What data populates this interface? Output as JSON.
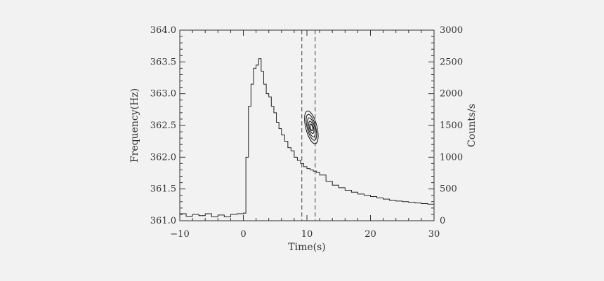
{
  "chart_data": {
    "type": "line",
    "xlabel": "Time(s)",
    "ylabel_left": "Frequency(Hz)",
    "ylabel_right": "Counts/s",
    "xlim": [
      -10,
      30
    ],
    "ylim_left": [
      361.0,
      364.0
    ],
    "ylim_right": [
      0,
      3000
    ],
    "x_ticks": [
      "-10",
      "0",
      "10",
      "20",
      "30"
    ],
    "y_left_ticks": [
      "361.0",
      "361.5",
      "362.0",
      "362.5",
      "363.0",
      "363.5",
      "364.0"
    ],
    "y_right_ticks": [
      "0",
      "500",
      "1000",
      "1500",
      "2000",
      "2500",
      "3000"
    ],
    "grid": false,
    "series": [
      {
        "style": "step",
        "axis": "right",
        "x": [
          -10,
          -9,
          -8,
          -7,
          -6,
          -5,
          -4,
          -3,
          -2,
          -1,
          0,
          0.4,
          0.8,
          1.2,
          1.6,
          2.0,
          2.4,
          2.8,
          3.2,
          3.6,
          4.0,
          4.4,
          4.8,
          5.2,
          5.6,
          6.0,
          6.5,
          7.0,
          7.5,
          8.0,
          8.5,
          9.0,
          9.5,
          10.0,
          10.5,
          11.0,
          11.5,
          12.0,
          13.0,
          14.0,
          15.0,
          16.0,
          17.0,
          18.0,
          19.0,
          20.0,
          21.0,
          22.0,
          23.0,
          24.0,
          25.0,
          26.0,
          27.0,
          28.0,
          29.0,
          30.0
        ],
        "y": [
          110,
          70,
          100,
          80,
          110,
          60,
          90,
          60,
          100,
          110,
          120,
          1000,
          1800,
          2150,
          2400,
          2450,
          2550,
          2350,
          2150,
          2000,
          1950,
          1800,
          1700,
          1550,
          1450,
          1350,
          1250,
          1150,
          1100,
          1000,
          950,
          900,
          850,
          820,
          800,
          780,
          760,
          720,
          620,
          560,
          520,
          480,
          450,
          420,
          400,
          380,
          360,
          340,
          320,
          310,
          300,
          290,
          280,
          270,
          260,
          250
        ]
      }
    ],
    "vertical_lines": [
      9.2,
      11.3
    ],
    "contour": {
      "center": [
        10.7,
        362.47
      ]
    }
  }
}
